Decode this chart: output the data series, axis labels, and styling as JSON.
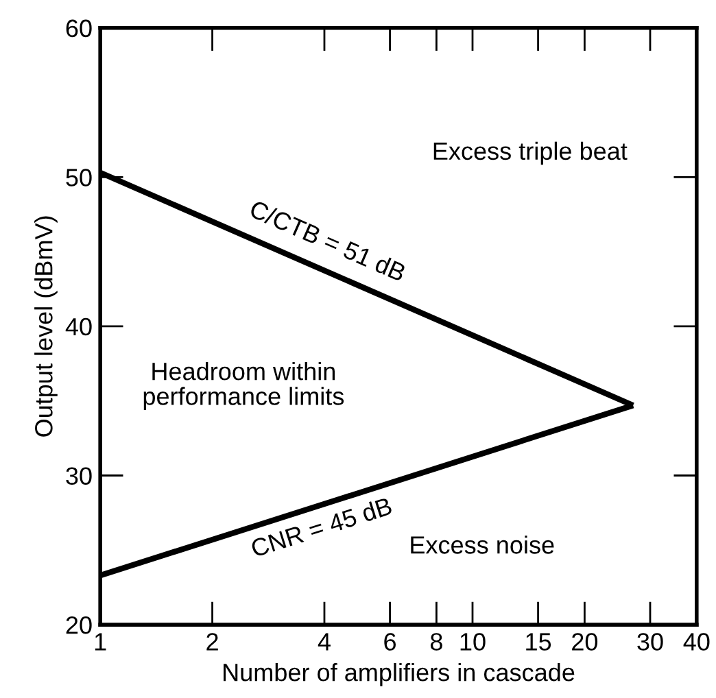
{
  "chart_data": {
    "type": "line",
    "xlabel": "Number of amplifiers in cascade",
    "ylabel": "Output level (dBmV)",
    "series": [
      {
        "color": "#000000",
        "values": [
          50.3,
          34.7
        ]
      },
      {
        "color": "#000000",
        "values": [
          23.3,
          34.7
        ]
      }
    ],
    "x": [
      1,
      27
    ],
    "annotations": [
      "C/CTB = 51 dB",
      "CNR = 45 dB",
      "Excess triple beat",
      "Headroom within\nperformance limits",
      "Excess noise"
    ],
    "log": "x",
    "xlim": [
      1,
      40
    ],
    "xticks": [
      1,
      2,
      4,
      6,
      8,
      10,
      15,
      20,
      30,
      40
    ],
    "ylim": [
      20,
      60
    ],
    "yticks": [
      20,
      30,
      40,
      50,
      60
    ],
    "grid": false,
    "legend": false,
    "marker": "none",
    "line_style": "solid"
  }
}
